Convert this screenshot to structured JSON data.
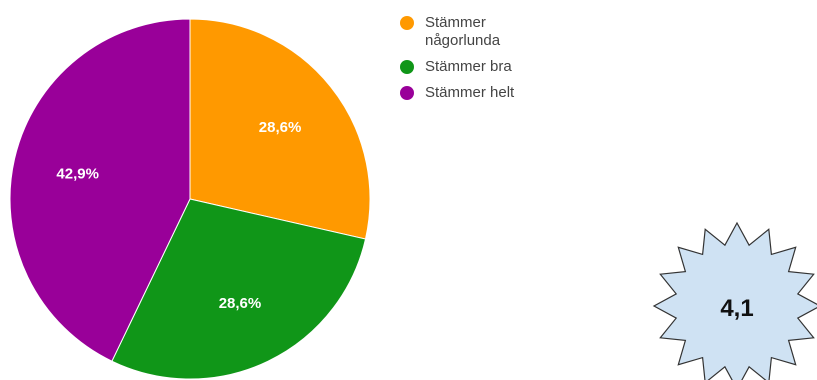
{
  "chart_data": {
    "type": "pie",
    "categories": [
      "Stämmer någorlunda",
      "Stämmer bra",
      "Stämmer helt"
    ],
    "values": [
      28.6,
      28.6,
      42.9
    ],
    "labels": [
      "28,6%",
      "28,6%",
      "42,9%"
    ],
    "colors": [
      "#ff9900",
      "#109618",
      "#990099"
    ],
    "legend": "right"
  },
  "badge": {
    "value": "4,1",
    "fill": "#cfe2f3"
  }
}
